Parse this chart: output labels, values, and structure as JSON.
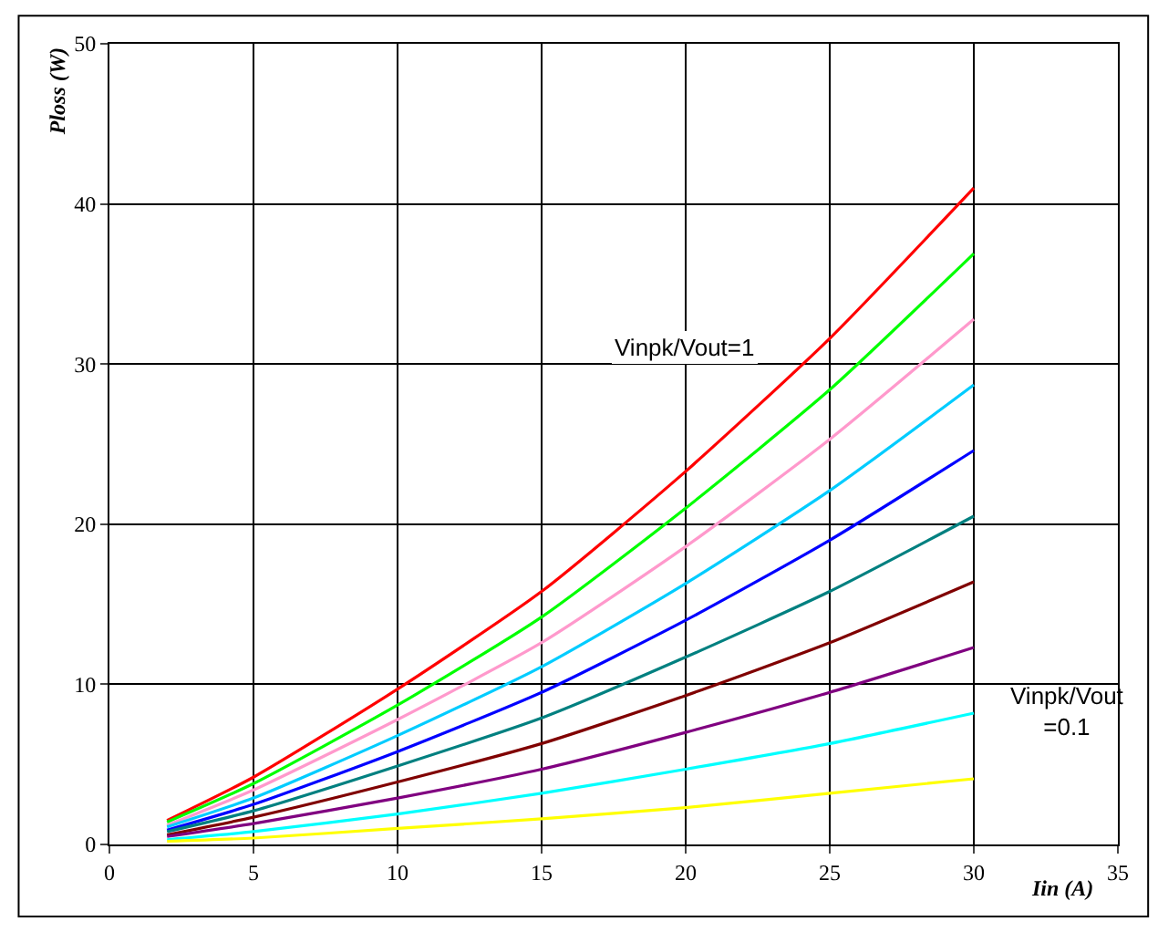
{
  "chart_data": {
    "type": "line",
    "xlabel": "Iin (A)",
    "ylabel": "Ploss (W)",
    "x": [
      2,
      5,
      10,
      15,
      20,
      25,
      30
    ],
    "xlim": [
      0,
      35
    ],
    "xticks": [
      0,
      5,
      10,
      15,
      20,
      25,
      30,
      35
    ],
    "ylim": [
      0,
      50
    ],
    "yticks": [
      0,
      10,
      20,
      30,
      40,
      50
    ],
    "grid": true,
    "legend": false,
    "marker": "none",
    "line_style": "solid",
    "series": [
      {
        "color": "#ff0000",
        "values": [
          1.5,
          4.2,
          9.7,
          15.8,
          23.3,
          31.6,
          41.0
        ]
      },
      {
        "color": "#00ff00",
        "values": [
          1.4,
          3.8,
          8.7,
          14.2,
          21.0,
          28.4,
          36.9
        ]
      },
      {
        "color": "#ff99cc",
        "values": [
          1.2,
          3.4,
          7.8,
          12.6,
          18.6,
          25.3,
          32.8
        ]
      },
      {
        "color": "#00ccff",
        "values": [
          1.1,
          2.9,
          6.8,
          11.1,
          16.3,
          22.1,
          28.7
        ]
      },
      {
        "color": "#0000ff",
        "values": [
          0.9,
          2.5,
          5.8,
          9.5,
          14.0,
          19.0,
          24.6
        ]
      },
      {
        "color": "#008080",
        "values": [
          0.8,
          2.1,
          4.9,
          7.9,
          11.7,
          15.8,
          20.5
        ]
      },
      {
        "color": "#800000",
        "values": [
          0.6,
          1.7,
          3.9,
          6.3,
          9.3,
          12.6,
          16.4
        ]
      },
      {
        "color": "#800080",
        "values": [
          0.5,
          1.3,
          2.9,
          4.7,
          7.0,
          9.5,
          12.3
        ]
      },
      {
        "color": "#00ffff",
        "values": [
          0.3,
          0.8,
          1.9,
          3.2,
          4.7,
          6.3,
          8.2
        ]
      },
      {
        "color": "#ffff00",
        "values": [
          0.2,
          0.4,
          1.0,
          1.6,
          2.3,
          3.2,
          4.1
        ]
      }
    ],
    "annotations": [
      "Vinpk/Vout=1",
      "Vinpk/Vout\n=0.1"
    ]
  }
}
